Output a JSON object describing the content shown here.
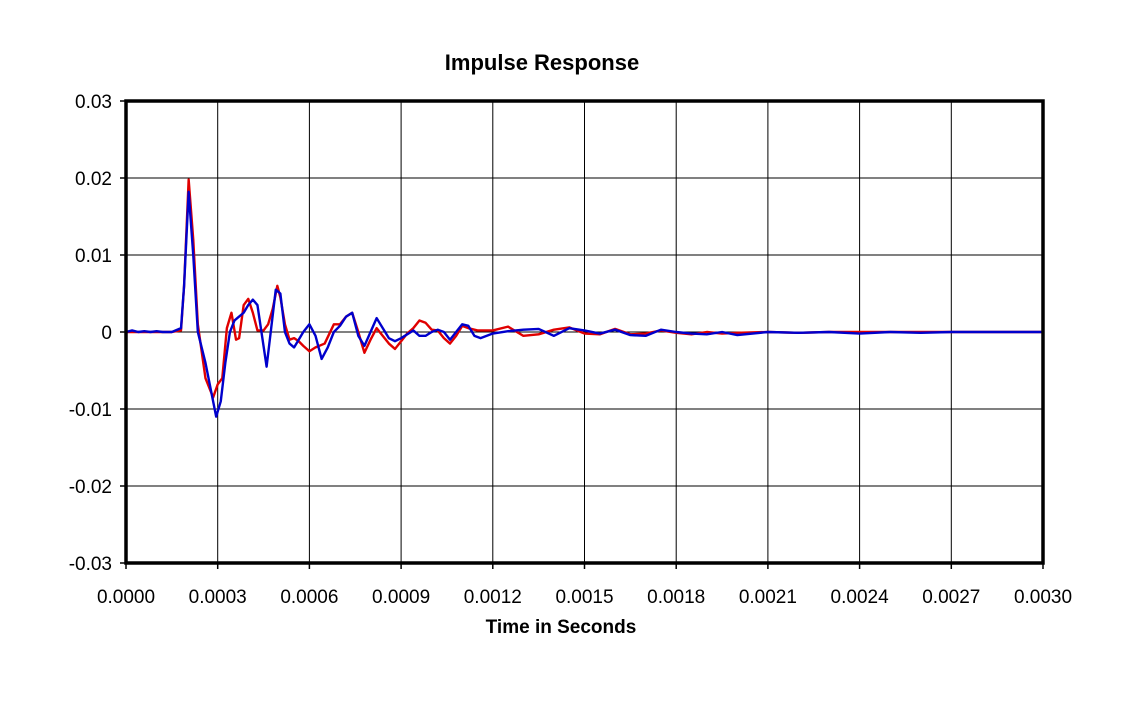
{
  "chart_data": {
    "type": "line",
    "title": "Impulse Response",
    "xlabel": "Time in Seconds",
    "ylabel": "",
    "xlim": [
      0,
      0.003
    ],
    "ylim": [
      -0.03,
      0.03
    ],
    "x_ticks": [
      "0.0000",
      "0.0003",
      "0.0006",
      "0.0009",
      "0.0012",
      "0.0015",
      "0.0018",
      "0.0021",
      "0.0024",
      "0.0027",
      "0.0030"
    ],
    "y_ticks": [
      "0.03",
      "0.02",
      "0.01",
      "0",
      "-0.01",
      "-0.02",
      "-0.03"
    ],
    "grid": true,
    "legend": "none",
    "series": [
      {
        "color": "#e00000",
        "points": [
          [
            0.0,
            0
          ],
          [
            5e-05,
            0
          ],
          [
            0.0001,
            0
          ],
          [
            0.00015,
            0
          ],
          [
            0.00018,
            0.0002
          ],
          [
            0.00019,
            0.006
          ],
          [
            0.000205,
            0.0198
          ],
          [
            0.00022,
            0.012
          ],
          [
            0.000235,
            0.001
          ],
          [
            0.00026,
            -0.006
          ],
          [
            0.000285,
            -0.0085
          ],
          [
            0.0003,
            -0.0068
          ],
          [
            0.000315,
            -0.006
          ],
          [
            0.00033,
            0.0005
          ],
          [
            0.000345,
            0.0025
          ],
          [
            0.00036,
            -0.001
          ],
          [
            0.00037,
            -0.0008
          ],
          [
            0.000385,
            0.0035
          ],
          [
            0.0004,
            0.0043
          ],
          [
            0.000415,
            0.0025
          ],
          [
            0.00043,
            0.0002
          ],
          [
            0.00045,
            0.0002
          ],
          [
            0.000465,
            0.001
          ],
          [
            0.00048,
            0.003
          ],
          [
            0.000495,
            0.006
          ],
          [
            0.000505,
            0.0045
          ],
          [
            0.00052,
            0.001
          ],
          [
            0.000535,
            -0.001
          ],
          [
            0.00055,
            -0.0008
          ],
          [
            0.000565,
            -0.0012
          ],
          [
            0.00058,
            -0.0018
          ],
          [
            0.0006,
            -0.0025
          ],
          [
            0.00062,
            -0.002
          ],
          [
            0.00065,
            -0.0015
          ],
          [
            0.00068,
            0.001
          ],
          [
            0.0007,
            0.001
          ],
          [
            0.00072,
            0.002
          ],
          [
            0.00074,
            0.0025
          ],
          [
            0.00076,
            0
          ],
          [
            0.00078,
            -0.0027
          ],
          [
            0.0008,
            -0.001
          ],
          [
            0.00082,
            0.0005
          ],
          [
            0.00084,
            -0.0005
          ],
          [
            0.00086,
            -0.0015
          ],
          [
            0.00088,
            -0.0022
          ],
          [
            0.0009,
            -0.0012
          ],
          [
            0.00092,
            -0.0002
          ],
          [
            0.00094,
            0.0005
          ],
          [
            0.00096,
            0.0015
          ],
          [
            0.00098,
            0.0012
          ],
          [
            0.001,
            0.0003
          ],
          [
            0.00102,
            0.0002
          ],
          [
            0.00104,
            -0.0008
          ],
          [
            0.00106,
            -0.0015
          ],
          [
            0.00108,
            -0.0005
          ],
          [
            0.0011,
            0.0008
          ],
          [
            0.00112,
            0.0005
          ],
          [
            0.00115,
            0.0002
          ],
          [
            0.0012,
            0.0002
          ],
          [
            0.00125,
            0.0007
          ],
          [
            0.0013,
            -0.0005
          ],
          [
            0.00135,
            -0.0003
          ],
          [
            0.0014,
            0.0003
          ],
          [
            0.00145,
            0.0006
          ],
          [
            0.0015,
            -0.0002
          ],
          [
            0.00155,
            -0.0003
          ],
          [
            0.0016,
            0.0004
          ],
          [
            0.00165,
            -0.0003
          ],
          [
            0.0017,
            -0.0002
          ],
          [
            0.00175,
            0.0002
          ],
          [
            0.0018,
            -0.0001
          ],
          [
            0.00185,
            -0.0003
          ],
          [
            0.0019,
            0
          ],
          [
            0.00195,
            -0.0002
          ],
          [
            0.002,
            -0.0001
          ],
          [
            0.0021,
            0
          ],
          [
            0.0022,
            -0.0001
          ],
          [
            0.0023,
            0
          ],
          [
            0.0025,
            0
          ],
          [
            0.0027,
            0
          ],
          [
            0.0028,
            0
          ],
          [
            0.003,
            0
          ]
        ]
      },
      {
        "color": "#0000cc",
        "points": [
          [
            0.0,
            0
          ],
          [
            2e-05,
            0.0002
          ],
          [
            4e-05,
            0
          ],
          [
            6e-05,
            0.0001
          ],
          [
            8e-05,
            0
          ],
          [
            0.0001,
            0.0001
          ],
          [
            0.00012,
            0
          ],
          [
            0.00015,
            0
          ],
          [
            0.00018,
            0.0005
          ],
          [
            0.00019,
            0.006
          ],
          [
            0.000205,
            0.0182
          ],
          [
            0.00022,
            0.01
          ],
          [
            0.000235,
            0
          ],
          [
            0.00026,
            -0.004
          ],
          [
            0.00028,
            -0.008
          ],
          [
            0.000295,
            -0.011
          ],
          [
            0.00031,
            -0.009
          ],
          [
            0.000325,
            -0.004
          ],
          [
            0.00034,
            0
          ],
          [
            0.000355,
            0.0015
          ],
          [
            0.00037,
            0.002
          ],
          [
            0.000385,
            0.0025
          ],
          [
            0.0004,
            0.0035
          ],
          [
            0.000415,
            0.0042
          ],
          [
            0.00043,
            0.0035
          ],
          [
            0.000445,
            -0.0005
          ],
          [
            0.00046,
            -0.0045
          ],
          [
            0.000475,
            0.0005
          ],
          [
            0.00049,
            0.0055
          ],
          [
            0.000505,
            0.005
          ],
          [
            0.00052,
            0
          ],
          [
            0.000535,
            -0.0015
          ],
          [
            0.00055,
            -0.002
          ],
          [
            0.000565,
            -0.001
          ],
          [
            0.00058,
            0
          ],
          [
            0.0006,
            0.001
          ],
          [
            0.00062,
            -0.0005
          ],
          [
            0.00064,
            -0.0035
          ],
          [
            0.00066,
            -0.002
          ],
          [
            0.00068,
            0
          ],
          [
            0.0007,
            0.0008
          ],
          [
            0.00072,
            0.002
          ],
          [
            0.00074,
            0.0025
          ],
          [
            0.00076,
            -0.0005
          ],
          [
            0.00078,
            -0.0018
          ],
          [
            0.0008,
            0
          ],
          [
            0.00082,
            0.0018
          ],
          [
            0.00084,
            0.0005
          ],
          [
            0.00086,
            -0.0008
          ],
          [
            0.00088,
            -0.0012
          ],
          [
            0.0009,
            -0.0008
          ],
          [
            0.00092,
            -0.0003
          ],
          [
            0.00094,
            0.0002
          ],
          [
            0.00096,
            -0.0005
          ],
          [
            0.00098,
            -0.0005
          ],
          [
            0.001,
            0
          ],
          [
            0.00102,
            0.0003
          ],
          [
            0.00104,
            0
          ],
          [
            0.00106,
            -0.001
          ],
          [
            0.00108,
            0
          ],
          [
            0.0011,
            0.001
          ],
          [
            0.00112,
            0.0008
          ],
          [
            0.00114,
            -0.0005
          ],
          [
            0.00116,
            -0.0008
          ],
          [
            0.0012,
            -0.0002
          ],
          [
            0.00125,
            0.0001
          ],
          [
            0.0013,
            0.0003
          ],
          [
            0.00135,
            0.0004
          ],
          [
            0.0014,
            -0.0005
          ],
          [
            0.00145,
            0.0005
          ],
          [
            0.0015,
            0.0002
          ],
          [
            0.00155,
            -0.0002
          ],
          [
            0.0016,
            0.0003
          ],
          [
            0.00165,
            -0.0004
          ],
          [
            0.0017,
            -0.0005
          ],
          [
            0.00175,
            0.0003
          ],
          [
            0.0018,
            0
          ],
          [
            0.00185,
            -0.0002
          ],
          [
            0.0019,
            -0.0003
          ],
          [
            0.00195,
            0
          ],
          [
            0.002,
            -0.0004
          ],
          [
            0.0021,
            0
          ],
          [
            0.0022,
            -0.0001
          ],
          [
            0.0023,
            0
          ],
          [
            0.0024,
            -0.0002
          ],
          [
            0.0025,
            0
          ],
          [
            0.0026,
            -0.0001
          ],
          [
            0.0027,
            0
          ],
          [
            0.0028,
            0
          ],
          [
            0.003,
            0
          ]
        ]
      }
    ]
  }
}
